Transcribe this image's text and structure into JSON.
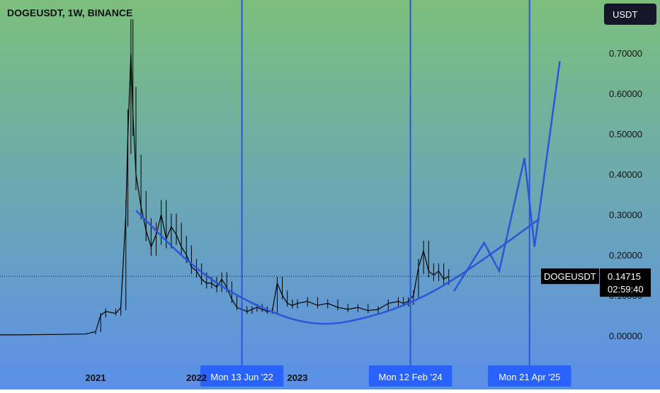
{
  "header": {
    "title": "DOGEUSDT, 1W, BINANCE",
    "currency_label": "USDT"
  },
  "price_tag": {
    "symbol": "DOGEUSDT",
    "price": "0.14715",
    "countdown": "02:59:40"
  },
  "colors": {
    "bg_top": "#7cbf7c",
    "bg_bottom": "#5b90e8",
    "line": "#2d55d8",
    "candle": "#000000",
    "label_bg": "#2962ff",
    "tag_bg": "#000000"
  },
  "chart_data": {
    "type": "candlestick",
    "title": "DOGEUSDT, 1W, BINANCE",
    "y_axis": {
      "unit": "USDT",
      "ticks": [
        "0.00000",
        "0.10000",
        "0.20000",
        "0.30000",
        "0.40000",
        "0.50000",
        "0.60000",
        "0.70000"
      ],
      "range": [
        -0.02,
        0.82
      ]
    },
    "x_axis": {
      "ticks": [
        "2021",
        "2022",
        "2023"
      ]
    },
    "vertical_markers": [
      "Mon 13 Jun '22",
      "Mon 12 Feb '24",
      "Mon 21 Apr '25"
    ],
    "current_price": 0.14715,
    "price_series": [
      [
        2019.8,
        0.002
      ],
      [
        2020.2,
        0.002
      ],
      [
        2020.6,
        0.003
      ],
      [
        2020.9,
        0.004
      ],
      [
        2021.0,
        0.01
      ],
      [
        2021.05,
        0.05
      ],
      [
        2021.1,
        0.06
      ],
      [
        2021.2,
        0.055
      ],
      [
        2021.25,
        0.07
      ],
      [
        2021.3,
        0.3
      ],
      [
        2021.32,
        0.5
      ],
      [
        2021.35,
        0.7
      ],
      [
        2021.37,
        0.55
      ],
      [
        2021.4,
        0.4
      ],
      [
        2021.45,
        0.32
      ],
      [
        2021.5,
        0.26
      ],
      [
        2021.55,
        0.22
      ],
      [
        2021.6,
        0.25
      ],
      [
        2021.65,
        0.3
      ],
      [
        2021.7,
        0.24
      ],
      [
        2021.75,
        0.27
      ],
      [
        2021.8,
        0.25
      ],
      [
        2021.85,
        0.22
      ],
      [
        2021.9,
        0.2
      ],
      [
        2021.95,
        0.17
      ],
      [
        2022.0,
        0.16
      ],
      [
        2022.05,
        0.14
      ],
      [
        2022.1,
        0.13
      ],
      [
        2022.15,
        0.13
      ],
      [
        2022.2,
        0.12
      ],
      [
        2022.25,
        0.14
      ],
      [
        2022.3,
        0.12
      ],
      [
        2022.35,
        0.09
      ],
      [
        2022.4,
        0.07
      ],
      [
        2022.45,
        0.065
      ],
      [
        2022.5,
        0.06
      ],
      [
        2022.55,
        0.065
      ],
      [
        2022.6,
        0.07
      ],
      [
        2022.65,
        0.065
      ],
      [
        2022.7,
        0.06
      ],
      [
        2022.75,
        0.06
      ],
      [
        2022.8,
        0.13
      ],
      [
        2022.85,
        0.1
      ],
      [
        2022.9,
        0.08
      ],
      [
        2022.95,
        0.075
      ],
      [
        2023.0,
        0.08
      ],
      [
        2023.1,
        0.085
      ],
      [
        2023.2,
        0.075
      ],
      [
        2023.3,
        0.08
      ],
      [
        2023.4,
        0.07
      ],
      [
        2023.5,
        0.065
      ],
      [
        2023.6,
        0.07
      ],
      [
        2023.7,
        0.062
      ],
      [
        2023.8,
        0.065
      ],
      [
        2023.9,
        0.08
      ],
      [
        2024.0,
        0.085
      ],
      [
        2024.05,
        0.08
      ],
      [
        2024.1,
        0.085
      ],
      [
        2024.15,
        0.1
      ],
      [
        2024.2,
        0.17
      ],
      [
        2024.25,
        0.21
      ],
      [
        2024.3,
        0.16
      ],
      [
        2024.35,
        0.15
      ],
      [
        2024.4,
        0.16
      ],
      [
        2024.45,
        0.14
      ],
      [
        2024.5,
        0.147
      ]
    ],
    "cup_curve": [
      [
        2021.4,
        0.31
      ],
      [
        2022.0,
        0.16
      ],
      [
        2022.6,
        0.07
      ],
      [
        2023.2,
        0.02
      ],
      [
        2023.8,
        0.05
      ],
      [
        2024.3,
        0.1
      ],
      [
        2024.8,
        0.18
      ],
      [
        2025.4,
        0.29
      ]
    ],
    "projection": [
      [
        2024.55,
        0.11
      ],
      [
        2024.85,
        0.23
      ],
      [
        2025.0,
        0.16
      ],
      [
        2025.25,
        0.44
      ],
      [
        2025.35,
        0.22
      ],
      [
        2025.6,
        0.68
      ]
    ]
  }
}
